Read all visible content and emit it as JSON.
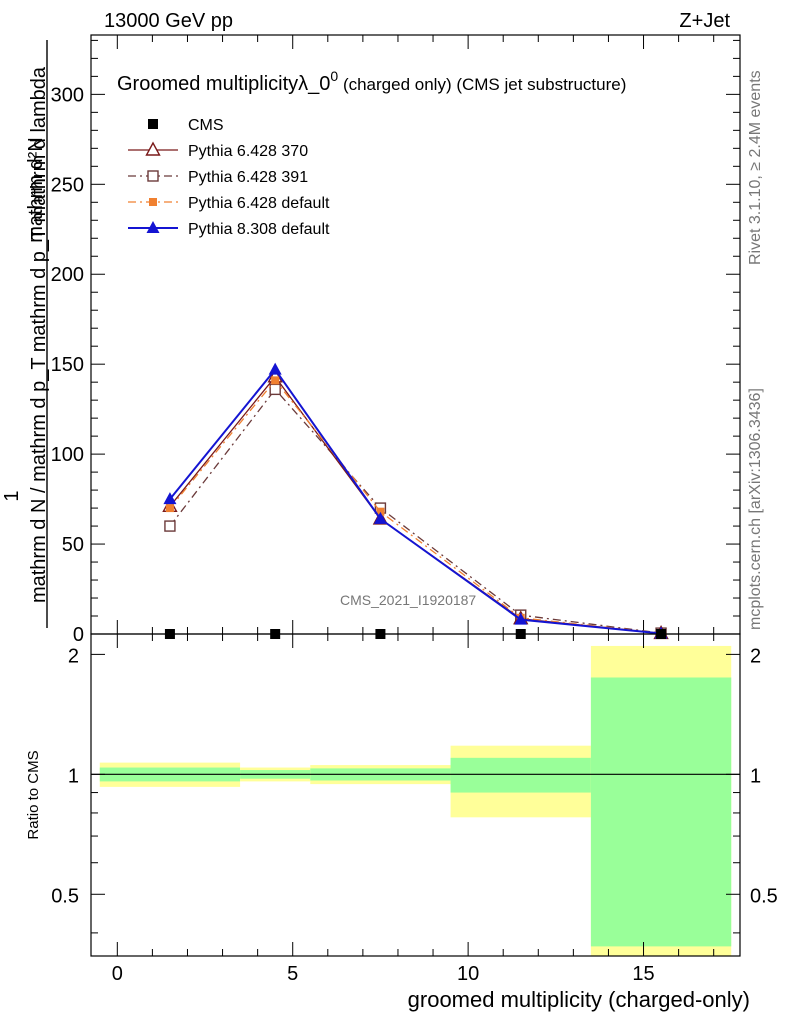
{
  "header": {
    "energy_label": "13000 GeV pp",
    "process_label": "Z+Jet"
  },
  "side_text": {
    "rivet": "Rivet 3.1.10, ≥ 2.4M events",
    "mcplots": "mcplots.cern.ch [arXiv:1306.3436]"
  },
  "watermark": "CMS_2021_I1920187",
  "colors": {
    "cms": "#000000",
    "p370": "#7a1a1a",
    "p391": "#6b3a3a",
    "p6def": "#f08030",
    "p8def": "#1414d2",
    "band_outer": "#ffff99",
    "band_inner": "#99ff99"
  },
  "chart_data": [
    {
      "type": "line",
      "title": "Groomed multiplicityλ_0",
      "title_sup": "0",
      "title_suffix": " (charged only) (CMS jet substructure)",
      "ylabel_numerator": "mathrm d²N",
      "ylabel_denominator": "mathrm d N / mathrm d p_T mathrm d p_T mathrm d lambda",
      "ylabel_one": "1",
      "xlim": [
        -0.75,
        17.75
      ],
      "ylim": [
        0,
        333
      ],
      "y_ticks": [
        0,
        50,
        100,
        150,
        200,
        250,
        300
      ],
      "legend_position": "top-left",
      "series": [
        {
          "name": "CMS",
          "key": "cms",
          "marker": "filled-square",
          "line": "none",
          "x": [
            1.5,
            4.5,
            7.5,
            11.5,
            15.5
          ],
          "y": [
            0,
            0,
            0,
            0,
            0
          ]
        },
        {
          "name": "Pythia 6.428 370",
          "key": "p370",
          "marker": "open-triangle",
          "line": "solid",
          "x": [
            1.5,
            4.5,
            7.5,
            11.5,
            15.5
          ],
          "y": [
            71,
            143,
            64,
            8.5,
            0.3
          ]
        },
        {
          "name": "Pythia 6.428 391",
          "key": "p391",
          "marker": "open-square",
          "line": "dashdot",
          "x": [
            1.5,
            4.5,
            7.5,
            11.5,
            15.5
          ],
          "y": [
            60,
            136,
            70,
            10.5,
            0.5
          ]
        },
        {
          "name": "Pythia 6.428 default",
          "key": "p6def",
          "marker": "filled-square-small",
          "line": "dashdot",
          "x": [
            1.5,
            4.5,
            7.5,
            11.5,
            15.5
          ],
          "y": [
            70,
            141,
            68,
            9,
            0.4
          ]
        },
        {
          "name": "Pythia 8.308 default",
          "key": "p8def",
          "marker": "filled-triangle",
          "line": "solid",
          "x": [
            1.5,
            4.5,
            7.5,
            11.5,
            15.5
          ],
          "y": [
            75,
            147,
            64,
            8,
            0.3
          ]
        }
      ]
    },
    {
      "type": "area",
      "ylabel": "Ratio to CMS",
      "xlabel": "groomed multiplicity (charged-only)",
      "xlim": [
        -0.75,
        17.75
      ],
      "ylim": [
        0.35,
        2.25
      ],
      "y_ticks": [
        0.5,
        1,
        2
      ],
      "x_ticks": [
        0,
        5,
        10,
        15
      ],
      "reference_line": 1,
      "bins": [
        {
          "lo": -0.5,
          "hi": 3.5,
          "outer": [
            0.93,
            1.07
          ],
          "inner": [
            0.96,
            1.04
          ]
        },
        {
          "lo": 3.5,
          "hi": 5.5,
          "outer": [
            0.96,
            1.04
          ],
          "inner": [
            0.975,
            1.025
          ]
        },
        {
          "lo": 5.5,
          "hi": 9.5,
          "outer": [
            0.945,
            1.055
          ],
          "inner": [
            0.965,
            1.035
          ]
        },
        {
          "lo": 9.5,
          "hi": 13.5,
          "outer": [
            0.78,
            1.18
          ],
          "inner": [
            0.9,
            1.1
          ]
        },
        {
          "lo": 13.5,
          "hi": 17.5,
          "outer": [
            0.35,
            2.1
          ],
          "inner": [
            0.37,
            1.75
          ]
        }
      ]
    }
  ]
}
